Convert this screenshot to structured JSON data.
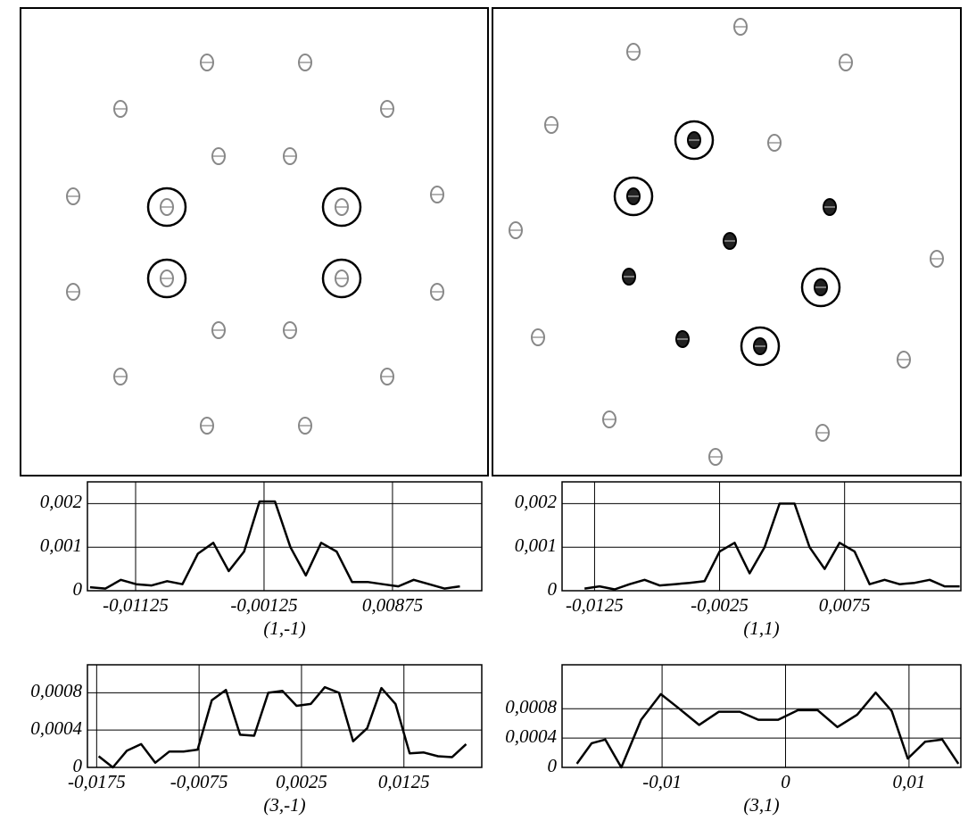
{
  "chart_data": [
    {
      "type": "line",
      "title": "(1,-1)",
      "color": "#000000",
      "grid": true,
      "x": [
        -0.0148,
        -0.0136,
        -0.0124,
        -0.0112,
        -0.01,
        -0.0088,
        -0.0076,
        -0.0064,
        -0.0052,
        -0.004,
        -0.0028,
        -0.0016,
        -0.0004,
        0.0008,
        0.002,
        0.0032,
        0.0044,
        0.0056,
        0.0068,
        0.008,
        0.0092,
        0.0104,
        0.0116,
        0.0128,
        0.014
      ],
      "values": [
        8e-05,
        5e-05,
        0.00025,
        0.00015,
        0.00012,
        0.00022,
        0.00015,
        0.00085,
        0.0011,
        0.00045,
        0.0009,
        0.00205,
        0.00205,
        0.001,
        0.00035,
        0.0011,
        0.0009,
        0.0002,
        0.0002,
        0.00015,
        0.0001,
        0.00025,
        0.00015,
        5e-05,
        0.0001
      ],
      "xlim": [
        -0.015,
        0.0157
      ],
      "ylim": [
        0,
        0.0025
      ],
      "xticks": [
        {
          "value": -0.01125,
          "label": "-0,01125"
        },
        {
          "value": -0.00125,
          "label": "-0,00125"
        },
        {
          "value": 0.00875,
          "label": "0,00875"
        }
      ],
      "yticks": [
        0,
        {
          "value": 0.001,
          "label": "0,001"
        },
        {
          "value": 0.002,
          "label": "0,002"
        }
      ]
    },
    {
      "type": "line",
      "title": "(1,1)",
      "color": "#000000",
      "grid": true,
      "x": [
        -0.0133,
        -0.0121,
        -0.0109,
        -0.0097,
        -0.0085,
        -0.0073,
        -0.0061,
        -0.0049,
        -0.0037,
        -0.0025,
        -0.0013,
        -0.0001,
        0.0011,
        0.0023,
        0.0035,
        0.0047,
        0.0059,
        0.0071,
        0.0083,
        0.0095,
        0.0107,
        0.0119,
        0.0131,
        0.0143,
        0.0155,
        0.0167
      ],
      "values": [
        5e-05,
        0.0001,
        3e-05,
        0.00015,
        0.00025,
        0.00012,
        0.00015,
        0.00018,
        0.00022,
        0.0009,
        0.0011,
        0.0004,
        0.001,
        0.002,
        0.002,
        0.001,
        0.0005,
        0.0011,
        0.0009,
        0.00015,
        0.00025,
        0.00015,
        0.00018,
        0.00025,
        0.0001,
        0.0001
      ],
      "xlim": [
        -0.0151,
        0.0168
      ],
      "ylim": [
        0,
        0.0025
      ],
      "xticks": [
        {
          "value": -0.0125,
          "label": "-0,0125"
        },
        {
          "value": -0.0025,
          "label": "-0,0025"
        },
        {
          "value": 0.0075,
          "label": "0,0075"
        }
      ],
      "yticks": [
        0,
        {
          "value": 0.001,
          "label": "0,001"
        },
        {
          "value": 0.002,
          "label": "0,002"
        }
      ]
    },
    {
      "type": "line",
      "title": "(3,-1)",
      "color": "#000000",
      "grid": true,
      "x": [
        -0.0173,
        -0.01592,
        -0.01454,
        -0.01316,
        -0.01178,
        -0.0104,
        -0.00902,
        -0.00764,
        -0.00626,
        -0.00488,
        -0.0035,
        -0.00212,
        -0.00074,
        0.00064,
        0.00202,
        0.0034,
        0.00478,
        0.00616,
        0.00754,
        0.00892,
        0.0103,
        0.01168,
        0.01306,
        0.01444,
        0.01582,
        0.0172,
        0.01858
      ],
      "values": [
        0.00012,
        0.0,
        0.00018,
        0.00025,
        5e-05,
        0.00017,
        0.00017,
        0.00019,
        0.00072,
        0.00083,
        0.00035,
        0.00034,
        0.0008,
        0.00082,
        0.00066,
        0.00068,
        0.00086,
        0.0008,
        0.00028,
        0.00042,
        0.00085,
        0.00068,
        0.00015,
        0.00016,
        0.00012,
        0.00011,
        0.00025
      ],
      "xlim": [
        -0.0184,
        0.0201
      ],
      "ylim": [
        0,
        0.0011
      ],
      "xticks": [
        {
          "value": -0.0175,
          "label": "-0,0175"
        },
        {
          "value": -0.0075,
          "label": "-0,0075"
        },
        {
          "value": 0.0025,
          "label": "0,0025"
        },
        {
          "value": 0.0125,
          "label": "0,0125"
        }
      ],
      "yticks": [
        0,
        {
          "value": 0.0004,
          "label": "0,0004"
        },
        {
          "value": 0.0008,
          "label": "0,0008"
        }
      ]
    },
    {
      "type": "line",
      "title": "(3,1)",
      "color": "#000000",
      "grid": true,
      "x": [
        -0.0169,
        -0.0157,
        -0.0146,
        -0.0133,
        -0.0117,
        -0.0101,
        -0.0086,
        -0.007,
        -0.0054,
        -0.0037,
        -0.0022,
        -0.0006,
        0.001,
        0.0026,
        0.0042,
        0.0058,
        0.0073,
        0.0086,
        0.0099,
        0.0113,
        0.0127,
        0.014
      ],
      "values": [
        5e-05,
        0.00033,
        0.00038,
        0.0,
        0.00065,
        0.001,
        0.0008,
        0.00058,
        0.00076,
        0.00076,
        0.00065,
        0.00065,
        0.00078,
        0.00078,
        0.00055,
        0.00072,
        0.00102,
        0.00077,
        0.00012,
        0.00035,
        0.00038,
        5e-05
      ],
      "xlim": [
        -0.0181,
        0.0142
      ],
      "ylim": [
        0,
        0.0014
      ],
      "xticks": [
        {
          "value": -0.01,
          "label": "-0,01"
        },
        0,
        {
          "value": 0.01,
          "label": "0,01"
        }
      ],
      "yticks": [
        0,
        {
          "value": 0.0004,
          "label": "0,0004"
        },
        {
          "value": 0.0008,
          "label": "0,0008"
        }
      ]
    }
  ]
}
